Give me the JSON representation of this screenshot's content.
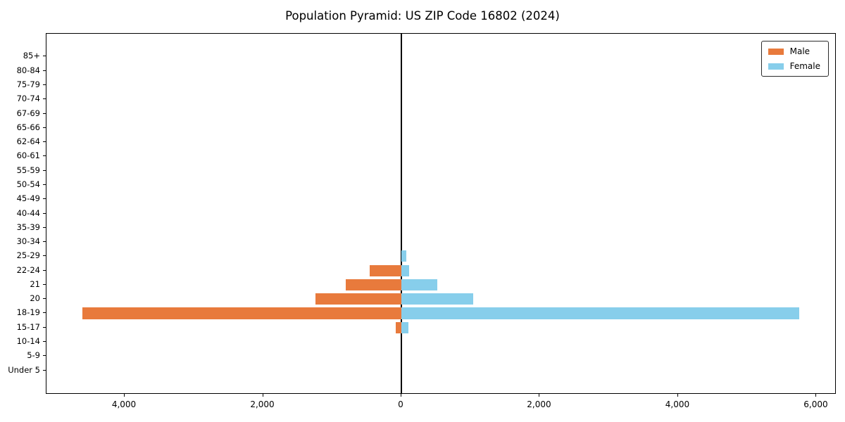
{
  "chart_data": {
    "type": "bar",
    "subtype": "population-pyramid",
    "title": "Population Pyramid: US ZIP Code 16802 (2024)",
    "xlabel": "",
    "ylabel": "",
    "grid": false,
    "legend_position": "upper right",
    "categories_top_to_bottom": [
      "85+",
      "80-84",
      "75-79",
      "70-74",
      "67-69",
      "65-66",
      "62-64",
      "60-61",
      "55-59",
      "50-54",
      "45-49",
      "40-44",
      "35-39",
      "30-34",
      "25-29",
      "22-24",
      "21",
      "20",
      "18-19",
      "15-17",
      "10-14",
      "5-9",
      "Under 5"
    ],
    "series": [
      {
        "name": "Male",
        "side": "left",
        "color": "#e87a3c",
        "values_top_to_bottom": [
          0,
          0,
          0,
          0,
          0,
          0,
          0,
          0,
          0,
          0,
          0,
          0,
          0,
          0,
          0,
          460,
          800,
          1240,
          4610,
          80,
          0,
          0,
          0
        ]
      },
      {
        "name": "Female",
        "side": "right",
        "color": "#87ceeb",
        "values_top_to_bottom": [
          0,
          0,
          0,
          0,
          0,
          0,
          0,
          0,
          0,
          0,
          0,
          0,
          0,
          0,
          70,
          110,
          515,
          1040,
          5750,
          100,
          0,
          0,
          0
        ]
      }
    ],
    "xlim": [
      -5130,
      6270
    ],
    "x_tick_values": [
      -4000,
      -2000,
      0,
      2000,
      4000,
      6000
    ],
    "x_tick_labels": [
      "4,000",
      "2,000",
      "0",
      "2,000",
      "4,000",
      "6,000"
    ],
    "axis_color": "#000000",
    "background_color": "#ffffff"
  }
}
